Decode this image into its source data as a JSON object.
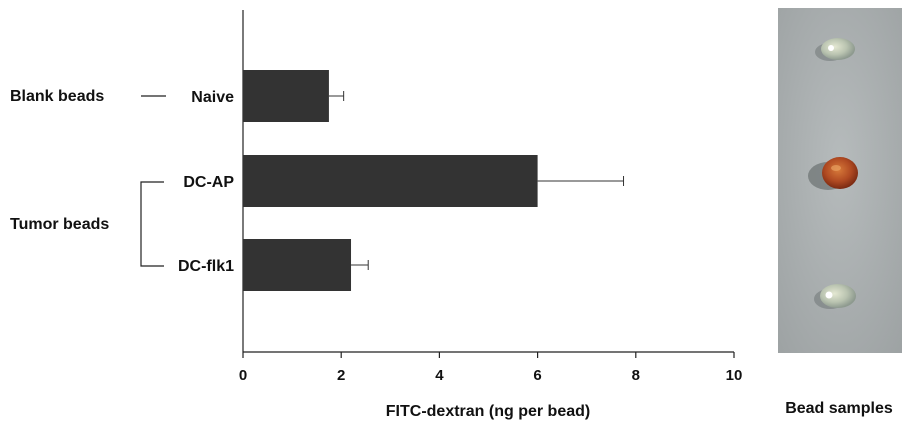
{
  "chart_data": {
    "type": "bar",
    "orientation": "horizontal",
    "categories": [
      "Naive",
      "DC-AP",
      "DC-flk1"
    ],
    "values": [
      1.75,
      6.0,
      2.2
    ],
    "errors": [
      0.3,
      1.75,
      0.35
    ],
    "groups": [
      {
        "label": "Blank beads",
        "members": [
          "Naive"
        ]
      },
      {
        "label": "Tumor beads",
        "members": [
          "DC-AP",
          "DC-flk1"
        ]
      }
    ],
    "xlabel": "FITC-dextran (ng per bead)",
    "ylabel": "",
    "xlim": [
      0,
      10
    ],
    "xticks": [
      "0",
      "2",
      "4",
      "6",
      "8",
      "10"
    ],
    "bar_color": "#333333",
    "grid": false
  },
  "photo": {
    "caption": "Bead samples",
    "background": "#a9aeaf",
    "beads": [
      "clear",
      "red",
      "clear"
    ]
  }
}
